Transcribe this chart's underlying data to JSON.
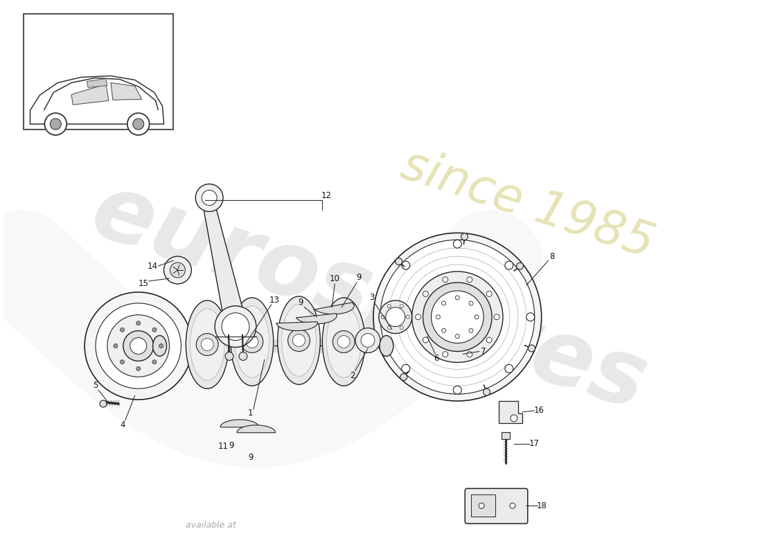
{
  "bg_color": "#ffffff",
  "fig_width": 11.0,
  "fig_height": 8.0,
  "watermark_main": "eurospares",
  "watermark_year": "since 1985",
  "watermark_bottom": "available at",
  "line_color": "#222222",
  "fill_light": "#f0f0f0",
  "fill_mid": "#e0e0e0",
  "fill_dark": "#cccccc"
}
